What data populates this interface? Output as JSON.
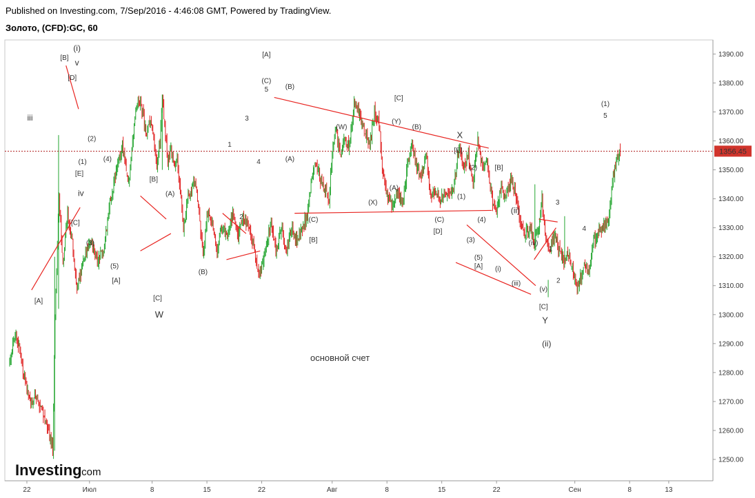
{
  "header": {
    "published": "Published on Investing.com, 7/Sep/2016 - 4:46:08 GMT, Powered by TradingView.",
    "symbol": "Золото, (CFD):GC, 60"
  },
  "logo": {
    "brand": "Investing",
    "suffix": ".com"
  },
  "colors": {
    "up": "#23a52f",
    "down": "#e02020",
    "trend": "#e8231f",
    "price_line": "#b22222",
    "price_tag": "#d0342c"
  },
  "chart_data": {
    "type": "candlestick",
    "ylim": [
      1245,
      1392
    ],
    "y_ticks": [
      1250,
      1260,
      1270,
      1280,
      1290,
      1300,
      1310,
      1320,
      1330,
      1340,
      1350,
      1360,
      1370,
      1380,
      1390
    ],
    "y_tick_labels": [
      "1250.00",
      "1260.00",
      "1270.00",
      "1280.00",
      "1290.00",
      "1300.00",
      "1310.00",
      "1320.00",
      "1330.00",
      "1340.00",
      "1350.00",
      "1360.00",
      "1370.00",
      "1380.00",
      "1390.00"
    ],
    "x_ticks": [
      {
        "label": "22",
        "day": 22
      },
      {
        "label": "Июл",
        "day": 30
      },
      {
        "label": "8",
        "day": 38
      },
      {
        "label": "15",
        "day": 45
      },
      {
        "label": "22",
        "day": 52
      },
      {
        "label": "Авг",
        "day": 61
      },
      {
        "label": "8",
        "day": 68
      },
      {
        "label": "15",
        "day": 75
      },
      {
        "label": "22",
        "day": 82
      },
      {
        "label": "Сен",
        "day": 92
      },
      {
        "label": "8",
        "day": 99
      },
      {
        "label": "13",
        "day": 104
      }
    ],
    "xlim": [
      19.8,
      108.5
    ],
    "last_price": 1356.45,
    "last_price_label": "1356.45",
    "path": [
      [
        19.8,
        1283
      ],
      [
        20.6,
        1295
      ],
      [
        21.5,
        1280
      ],
      [
        22.3,
        1270
      ],
      [
        23.2,
        1272
      ],
      [
        24.2,
        1265
      ],
      [
        25,
        1258
      ],
      [
        25.3,
        1253
      ],
      [
        25.6,
        1300
      ],
      [
        26.1,
        1340
      ],
      [
        26.6,
        1318
      ],
      [
        27.2,
        1335
      ],
      [
        27.8,
        1325
      ],
      [
        28.4,
        1309
      ],
      [
        29.2,
        1318
      ],
      [
        30.2,
        1326
      ],
      [
        31,
        1318
      ],
      [
        31.8,
        1323
      ],
      [
        32.6,
        1338
      ],
      [
        33.4,
        1350
      ],
      [
        34.2,
        1358
      ],
      [
        35,
        1345
      ],
      [
        35.6,
        1362
      ],
      [
        36.2,
        1375
      ],
      [
        36.8,
        1370
      ],
      [
        37.3,
        1362
      ],
      [
        37.8,
        1368
      ],
      [
        38.3,
        1358
      ],
      [
        38.6,
        1352
      ],
      [
        39,
        1360
      ],
      [
        39.3,
        1376
      ],
      [
        39.6,
        1365
      ],
      [
        40,
        1353
      ],
      [
        40.4,
        1357
      ],
      [
        40.8,
        1350
      ],
      [
        41.2,
        1354
      ],
      [
        41.6,
        1342
      ],
      [
        42,
        1330
      ],
      [
        42.6,
        1340
      ],
      [
        43.2,
        1345
      ],
      [
        43.6,
        1345
      ],
      [
        44,
        1335
      ],
      [
        44.5,
        1320
      ],
      [
        45,
        1335
      ],
      [
        45.6,
        1332
      ],
      [
        46.3,
        1322
      ],
      [
        47,
        1331
      ],
      [
        47.6,
        1326
      ],
      [
        48.3,
        1335
      ],
      [
        49,
        1327
      ],
      [
        49.6,
        1334
      ],
      [
        50.3,
        1330
      ],
      [
        51,
        1324
      ],
      [
        51.6,
        1314
      ],
      [
        52.1,
        1317
      ],
      [
        52.6,
        1325
      ],
      [
        53.2,
        1331
      ],
      [
        53.8,
        1322
      ],
      [
        54.5,
        1330
      ],
      [
        55.2,
        1322
      ],
      [
        55.8,
        1330
      ],
      [
        56.5,
        1326
      ],
      [
        57.2,
        1330
      ],
      [
        57.8,
        1334
      ],
      [
        58.4,
        1348
      ],
      [
        59,
        1352
      ],
      [
        59.6,
        1346
      ],
      [
        60.2,
        1342
      ],
      [
        60.6,
        1340
      ],
      [
        61,
        1356
      ],
      [
        61.4,
        1364
      ],
      [
        62,
        1355
      ],
      [
        62.6,
        1360
      ],
      [
        63.2,
        1358
      ],
      [
        63.8,
        1372
      ],
      [
        64.5,
        1370
      ],
      [
        65.2,
        1362
      ],
      [
        65.8,
        1358
      ],
      [
        66.4,
        1370
      ],
      [
        67,
        1366
      ],
      [
        67.4,
        1350
      ],
      [
        67.9,
        1342
      ],
      [
        68.6,
        1338
      ],
      [
        69.3,
        1342
      ],
      [
        70,
        1338
      ],
      [
        70.6,
        1352
      ],
      [
        71.2,
        1360
      ],
      [
        71.8,
        1350
      ],
      [
        72.4,
        1348
      ],
      [
        73,
        1356
      ],
      [
        73.6,
        1340
      ],
      [
        74.2,
        1343
      ],
      [
        74.8,
        1339
      ],
      [
        75.4,
        1343
      ],
      [
        76,
        1340
      ],
      [
        76.6,
        1345
      ],
      [
        77.2,
        1358
      ],
      [
        77.8,
        1350
      ],
      [
        78.4,
        1355
      ],
      [
        79,
        1346
      ],
      [
        79.6,
        1360
      ],
      [
        80.2,
        1350
      ],
      [
        80.8,
        1353
      ],
      [
        81.4,
        1340
      ],
      [
        82,
        1336
      ],
      [
        82.6,
        1344
      ],
      [
        83.2,
        1340
      ],
      [
        83.8,
        1346
      ],
      [
        84.4,
        1342
      ],
      [
        85,
        1332
      ],
      [
        85.6,
        1328
      ],
      [
        86.2,
        1330
      ],
      [
        86.8,
        1325
      ],
      [
        87.4,
        1330
      ],
      [
        87.8,
        1340
      ],
      [
        88.2,
        1328
      ],
      [
        88.8,
        1322
      ],
      [
        89.4,
        1328
      ],
      [
        90,
        1322
      ],
      [
        90.6,
        1318
      ],
      [
        91.2,
        1321
      ],
      [
        91.8,
        1315
      ],
      [
        92.3,
        1310
      ],
      [
        92.8,
        1313
      ],
      [
        93.3,
        1318
      ],
      [
        93.8,
        1315
      ],
      [
        94.3,
        1325
      ],
      [
        94.8,
        1327
      ],
      [
        95.3,
        1330
      ],
      [
        95.8,
        1331
      ],
      [
        96.3,
        1332
      ],
      [
        96.8,
        1345
      ],
      [
        97.3,
        1353
      ],
      [
        97.8,
        1356
      ]
    ],
    "trend_lines": [
      [
        [
          22.6,
          1308.5
        ],
        [
          28.8,
          1337
        ]
      ],
      [
        [
          27,
          1386
        ],
        [
          28.6,
          1371
        ]
      ],
      [
        [
          36.5,
          1341
        ],
        [
          39.8,
          1333
        ]
      ],
      [
        [
          36.5,
          1322
        ],
        [
          40.4,
          1328
        ]
      ],
      [
        [
          47.5,
          1319
        ],
        [
          51.8,
          1322
        ]
      ],
      [
        [
          47,
          1335
        ],
        [
          50,
          1328
        ]
      ],
      [
        [
          53.6,
          1375
        ],
        [
          81,
          1357.5
        ]
      ],
      [
        [
          56.2,
          1335
        ],
        [
          81.4,
          1336
        ]
      ],
      [
        [
          78.2,
          1331
        ],
        [
          87,
          1310
        ]
      ],
      [
        [
          76.8,
          1318
        ],
        [
          86.4,
          1307
        ]
      ],
      [
        [
          86.8,
          1319
        ],
        [
          89.6,
          1330
        ]
      ],
      [
        [
          87.4,
          1333
        ],
        [
          89.8,
          1332
        ]
      ]
    ],
    "annotations": [
      {
        "text": "iii",
        "day": 22.4,
        "price": 1367
      },
      {
        "text": "[A]",
        "day": 23.5,
        "price": 1304
      },
      {
        "text": "[B]",
        "day": 26.8,
        "price": 1388
      },
      {
        "text": "(i)",
        "day": 28.4,
        "price": 1391
      },
      {
        "text": "v",
        "day": 28.4,
        "price": 1386
      },
      {
        "text": "[D]",
        "day": 27.8,
        "price": 1381
      },
      {
        "text": "(1)",
        "day": 29.1,
        "price": 1352
      },
      {
        "text": "[E]",
        "day": 28.7,
        "price": 1348
      },
      {
        "text": "(2)",
        "day": 30.3,
        "price": 1360
      },
      {
        "text": "iv",
        "day": 28.9,
        "price": 1341
      },
      {
        "text": "[C]",
        "day": 28.2,
        "price": 1331
      },
      {
        "text": "(4)",
        "day": 32.3,
        "price": 1353
      },
      {
        "text": "(3)",
        "day": 30.1,
        "price": 1324
      },
      {
        "text": "(5)",
        "day": 33.2,
        "price": 1316
      },
      {
        "text": "[A]",
        "day": 33.4,
        "price": 1311
      },
      {
        "text": "[B]",
        "day": 38.2,
        "price": 1346
      },
      {
        "text": "(A)",
        "day": 40.3,
        "price": 1341
      },
      {
        "text": "[C]",
        "day": 38.7,
        "price": 1305
      },
      {
        "text": "(B)",
        "day": 44.5,
        "price": 1314
      },
      {
        "text": "W",
        "day": 38.9,
        "price": 1299
      },
      {
        "text": "1",
        "day": 47.9,
        "price": 1358
      },
      {
        "text": "2",
        "day": 49.4,
        "price": 1333
      },
      {
        "text": "3",
        "day": 50.1,
        "price": 1367
      },
      {
        "text": "4",
        "day": 51.6,
        "price": 1352
      },
      {
        "text": "[A]",
        "day": 52.6,
        "price": 1389
      },
      {
        "text": "(C)",
        "day": 52.6,
        "price": 1380
      },
      {
        "text": "5",
        "day": 52.6,
        "price": 1377
      },
      {
        "text": "(B)",
        "day": 55.6,
        "price": 1378
      },
      {
        "text": "(A)",
        "day": 55.6,
        "price": 1353
      },
      {
        "text": "(C)",
        "day": 58.6,
        "price": 1332
      },
      {
        "text": "[B]",
        "day": 58.6,
        "price": 1325
      },
      {
        "text": "(W)",
        "day": 62.2,
        "price": 1364
      },
      {
        "text": "[C]",
        "day": 69.5,
        "price": 1374
      },
      {
        "text": "(Y)",
        "day": 69.2,
        "price": 1366
      },
      {
        "text": "(B)",
        "day": 71.8,
        "price": 1364
      },
      {
        "text": "X",
        "day": 77.3,
        "price": 1361
      },
      {
        "text": "[E]",
        "day": 77.1,
        "price": 1356
      },
      {
        "text": "(A)",
        "day": 68.9,
        "price": 1343
      },
      {
        "text": "(X)",
        "day": 66.2,
        "price": 1338
      },
      {
        "text": "(C)",
        "day": 74.7,
        "price": 1332
      },
      {
        "text": "[D]",
        "day": 74.5,
        "price": 1328
      },
      {
        "text": "(2)",
        "day": 79,
        "price": 1350
      },
      {
        "text": "[B]",
        "day": 82.3,
        "price": 1350
      },
      {
        "text": "(1)",
        "day": 77.5,
        "price": 1340
      },
      {
        "text": "(4)",
        "day": 80.1,
        "price": 1332
      },
      {
        "text": "(3)",
        "day": 78.7,
        "price": 1325
      },
      {
        "text": "(5)",
        "day": 79.7,
        "price": 1319
      },
      {
        "text": "[A]",
        "day": 79.7,
        "price": 1316
      },
      {
        "text": "(ii)",
        "day": 84.4,
        "price": 1335
      },
      {
        "text": "(i)",
        "day": 82.2,
        "price": 1315
      },
      {
        "text": "(iv)",
        "day": 86.7,
        "price": 1324
      },
      {
        "text": "(iii)",
        "day": 84.5,
        "price": 1310
      },
      {
        "text": "(v)",
        "day": 88,
        "price": 1308
      },
      {
        "text": "[C]",
        "day": 88,
        "price": 1302
      },
      {
        "text": "Y",
        "day": 88.2,
        "price": 1297
      },
      {
        "text": "(ii)",
        "day": 88.4,
        "price": 1289
      },
      {
        "text": "1",
        "day": 88.9,
        "price": 1322
      },
      {
        "text": "2",
        "day": 89.9,
        "price": 1311
      },
      {
        "text": "3",
        "day": 89.8,
        "price": 1338
      },
      {
        "text": "4",
        "day": 93.2,
        "price": 1329
      },
      {
        "text": "(1)",
        "day": 95.9,
        "price": 1372
      },
      {
        "text": "5",
        "day": 95.9,
        "price": 1368
      },
      {
        "text": "основной счет",
        "day": 62,
        "price": 1284
      }
    ]
  }
}
